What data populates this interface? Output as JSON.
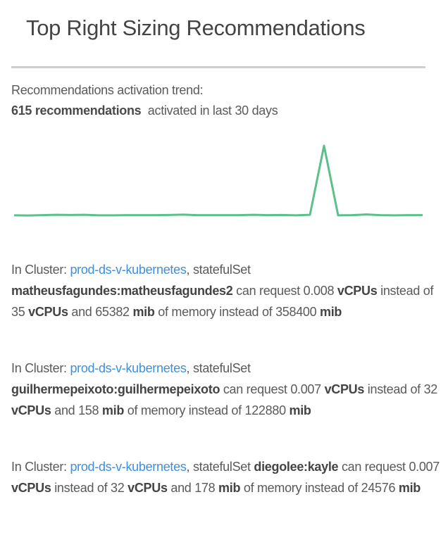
{
  "header": {
    "title": "Top Right Sizing Recommendations"
  },
  "trend": {
    "label": "Recommendations activation trend:",
    "count_text": "615 recommendations",
    "suffix": "activated in last 30 days"
  },
  "chart_data": {
    "type": "line",
    "color": "#5cc08a",
    "days": 30,
    "values": [
      5,
      4,
      6,
      8,
      7,
      8,
      5,
      5,
      6,
      6,
      6,
      7,
      9,
      6,
      6,
      6,
      6,
      8,
      6,
      7,
      5,
      8,
      430,
      5,
      6,
      10,
      6,
      5,
      6,
      6
    ],
    "axes": "hidden",
    "grid": false
  },
  "labels": {
    "in_cluster": "In Cluster:",
    "can_request": "can request",
    "vcpus": "vCPUs",
    "instead_of": "instead of",
    "and": "and",
    "mib": "mib",
    "memory_instead_of": "of memory instead of"
  },
  "recommendations": [
    {
      "cluster": "prod-ds-v-kubernetes",
      "workload_type": "statefulSet",
      "name": "matheusfagundes:matheusfagundes2",
      "cpu_recommended": "0.008",
      "cpu_current": "35",
      "mem_recommended": "65382",
      "mem_current": "358400"
    },
    {
      "cluster": "prod-ds-v-kubernetes",
      "workload_type": "statefulSet",
      "name": "guilhermepeixoto:guilhermepeixoto",
      "cpu_recommended": "0.007",
      "cpu_current": "32",
      "mem_recommended": "158",
      "mem_current": "122880"
    },
    {
      "cluster": "prod-ds-v-kubernetes",
      "workload_type": "statefulSet",
      "name": "diegolee:kayle",
      "cpu_recommended": "0.007",
      "cpu_current": "32",
      "mem_recommended": "178",
      "mem_current": "24576"
    }
  ]
}
